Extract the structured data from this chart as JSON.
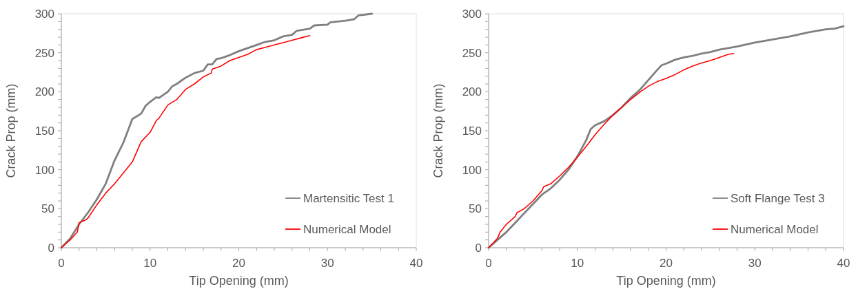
{
  "chart_data": [
    {
      "type": "line",
      "xlabel": "Tip Opening (mm)",
      "ylabel": "Crack Prop (mm)",
      "xlim": [
        0,
        40
      ],
      "ylim": [
        0,
        300
      ],
      "xticks": [
        0,
        {
          "value": 2,
          "label": null
        },
        {
          "value": 4,
          "label": null
        },
        {
          "value": 6,
          "label": null
        },
        {
          "value": 8,
          "label": null
        },
        10,
        {
          "value": 12,
          "label": null
        },
        {
          "value": 14,
          "label": null
        },
        {
          "value": 16,
          "label": null
        },
        {
          "value": 18,
          "label": null
        },
        20,
        {
          "value": 22,
          "label": null
        },
        {
          "value": 24,
          "label": null
        },
        {
          "value": 26,
          "label": null
        },
        {
          "value": 28,
          "label": null
        },
        30,
        {
          "value": 32,
          "label": null
        },
        {
          "value": 34,
          "label": null
        },
        {
          "value": 36,
          "label": null
        },
        {
          "value": 38,
          "label": null
        },
        40
      ],
      "yticks": [
        0,
        {
          "value": 10,
          "label": null
        },
        {
          "value": 20,
          "label": null
        },
        {
          "value": 30,
          "label": null
        },
        {
          "value": 40,
          "label": null
        },
        50,
        {
          "value": 60,
          "label": null
        },
        {
          "value": 70,
          "label": null
        },
        {
          "value": 80,
          "label": null
        },
        {
          "value": 90,
          "label": null
        },
        100,
        {
          "value": 110,
          "label": null
        },
        {
          "value": 120,
          "label": null
        },
        {
          "value": 130,
          "label": null
        },
        {
          "value": 140,
          "label": null
        },
        150,
        {
          "value": 160,
          "label": null
        },
        {
          "value": 170,
          "label": null
        },
        {
          "value": 180,
          "label": null
        },
        {
          "value": 190,
          "label": null
        },
        200,
        {
          "value": 210,
          "label": null
        },
        {
          "value": 220,
          "label": null
        },
        {
          "value": 230,
          "label": null
        },
        {
          "value": 240,
          "label": null
        },
        250,
        {
          "value": 260,
          "label": null
        },
        {
          "value": 270,
          "label": null
        },
        {
          "value": 280,
          "label": null
        },
        {
          "value": 290,
          "label": null
        },
        300
      ],
      "grid": false,
      "legend": "bottom right",
      "line_style": "solid",
      "series": [
        {
          "name": "Martensitic Test 1",
          "color": "#7f7f7f",
          "x": [
            0,
            1,
            2,
            3,
            4,
            5,
            6,
            7,
            8,
            9,
            9.5,
            10,
            10.7,
            11,
            12,
            12.5,
            13,
            14,
            15,
            16,
            16.5,
            17,
            17.5,
            18,
            19,
            20,
            21,
            22,
            23,
            24,
            25,
            26,
            26.5,
            28,
            28.5,
            30,
            30.3,
            32,
            33,
            33.5,
            35
          ],
          "values": [
            0,
            12,
            30,
            45,
            62,
            82,
            112,
            135,
            165,
            172,
            182,
            187,
            193,
            192,
            200,
            207,
            210,
            218,
            224,
            227,
            235,
            235,
            242,
            243,
            247,
            252,
            256,
            260,
            264,
            266,
            271,
            273,
            278,
            281,
            285,
            286,
            289,
            291,
            293,
            298,
            300
          ]
        },
        {
          "name": "Numerical Model",
          "color": "#ff0000",
          "x": [
            0,
            1,
            1.8,
            2,
            2.8,
            3,
            4,
            5,
            6,
            7,
            8,
            9,
            10,
            10.7,
            11,
            12,
            13,
            14,
            15,
            16,
            16.9,
            17,
            18,
            19,
            20,
            21,
            22,
            23,
            24,
            25,
            26,
            27,
            28
          ],
          "values": [
            0,
            10,
            20,
            32,
            36,
            38,
            55,
            70,
            82,
            96,
            110,
            136,
            148,
            163,
            166,
            183,
            190,
            203,
            210,
            219,
            224,
            229,
            233,
            240,
            244,
            248,
            254,
            257,
            260,
            263,
            266,
            269,
            272
          ]
        }
      ]
    },
    {
      "type": "line",
      "xlabel": "Tip Opening (mm)",
      "ylabel": "Crack Prop (mm)",
      "xlim": [
        0,
        40
      ],
      "ylim": [
        0,
        300
      ],
      "xticks": [
        0,
        {
          "value": 2,
          "label": null
        },
        {
          "value": 4,
          "label": null
        },
        {
          "value": 6,
          "label": null
        },
        {
          "value": 8,
          "label": null
        },
        10,
        {
          "value": 12,
          "label": null
        },
        {
          "value": 14,
          "label": null
        },
        {
          "value": 16,
          "label": null
        },
        {
          "value": 18,
          "label": null
        },
        20,
        {
          "value": 22,
          "label": null
        },
        {
          "value": 24,
          "label": null
        },
        {
          "value": 26,
          "label": null
        },
        {
          "value": 28,
          "label": null
        },
        30,
        {
          "value": 32,
          "label": null
        },
        {
          "value": 34,
          "label": null
        },
        {
          "value": 36,
          "label": null
        },
        {
          "value": 38,
          "label": null
        },
        40
      ],
      "yticks": [
        0,
        {
          "value": 10,
          "label": null
        },
        {
          "value": 20,
          "label": null
        },
        {
          "value": 30,
          "label": null
        },
        {
          "value": 40,
          "label": null
        },
        50,
        {
          "value": 60,
          "label": null
        },
        {
          "value": 70,
          "label": null
        },
        {
          "value": 80,
          "label": null
        },
        {
          "value": 90,
          "label": null
        },
        100,
        {
          "value": 110,
          "label": null
        },
        {
          "value": 120,
          "label": null
        },
        {
          "value": 130,
          "label": null
        },
        {
          "value": 140,
          "label": null
        },
        150,
        {
          "value": 160,
          "label": null
        },
        {
          "value": 170,
          "label": null
        },
        {
          "value": 180,
          "label": null
        },
        {
          "value": 190,
          "label": null
        },
        200,
        {
          "value": 210,
          "label": null
        },
        {
          "value": 220,
          "label": null
        },
        {
          "value": 230,
          "label": null
        },
        {
          "value": 240,
          "label": null
        },
        250,
        {
          "value": 260,
          "label": null
        },
        {
          "value": 270,
          "label": null
        },
        {
          "value": 280,
          "label": null
        },
        {
          "value": 290,
          "label": null
        },
        300
      ],
      "grid": false,
      "legend": "bottom right",
      "line_style": "solid",
      "series": [
        {
          "name": "Soft Flange Test 3",
          "color": "#7f7f7f",
          "x": [
            0,
            1,
            2,
            3,
            4,
            5,
            6,
            7,
            8,
            9,
            10,
            11,
            11.5,
            12,
            13,
            14,
            15,
            16,
            17,
            18,
            19,
            19.5,
            20,
            21,
            22,
            23,
            24,
            25,
            26,
            28,
            30,
            32,
            34,
            36,
            38,
            39,
            40
          ],
          "values": [
            0,
            10,
            20,
            32,
            44,
            56,
            68,
            76,
            87,
            100,
            117,
            138,
            152,
            157,
            162,
            170,
            180,
            192,
            202,
            215,
            228,
            234,
            236,
            241,
            244,
            246,
            249,
            251,
            254,
            258,
            263,
            267,
            271,
            276,
            280,
            281,
            284
          ]
        },
        {
          "name": "Numerical Model",
          "color": "#ff0000",
          "x": [
            0,
            1,
            1.3,
            2,
            3,
            3.2,
            4,
            5,
            6,
            6.2,
            7,
            8,
            9,
            10,
            11,
            12,
            13,
            14,
            15,
            16,
            17,
            18,
            19,
            20,
            21,
            22,
            23,
            24,
            25,
            26,
            27,
            27.6
          ],
          "values": [
            0,
            12,
            20,
            30,
            40,
            45,
            50,
            60,
            73,
            78,
            82,
            92,
            103,
            116,
            130,
            145,
            158,
            170,
            180,
            190,
            199,
            207,
            213,
            217,
            222,
            228,
            233,
            237,
            240,
            244,
            248,
            249
          ]
        }
      ]
    }
  ]
}
